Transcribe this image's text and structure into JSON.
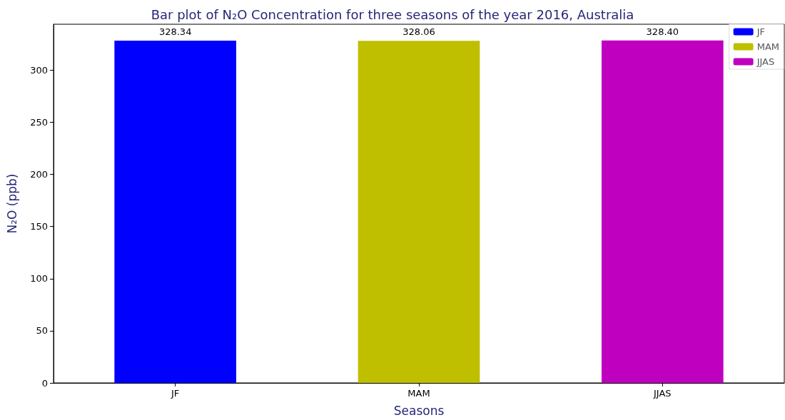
{
  "chart_data": {
    "type": "bar",
    "title": "Bar plot of N₂O Concentration for three seasons of the year 2016, Australia",
    "xlabel": "Seasons",
    "ylabel": "N₂O (ppb)",
    "categories": [
      "JF",
      "MAM",
      "JJAS"
    ],
    "series": [
      {
        "name": "JF",
        "color": "#0000ff",
        "values": [
          328.34,
          null,
          null
        ],
        "value_labels": [
          "328.34",
          null,
          null
        ]
      },
      {
        "name": "MAM",
        "color": "#bfbf00",
        "values": [
          null,
          328.06,
          null
        ],
        "value_labels": [
          null,
          "328.06",
          null
        ]
      },
      {
        "name": "JJAS",
        "color": "#bf00bf",
        "values": [
          null,
          null,
          328.4
        ],
        "value_labels": [
          null,
          null,
          "328.40"
        ]
      }
    ],
    "stacked": true,
    "ylim": [
      0,
      344
    ],
    "yticks": [
      0,
      50,
      100,
      150,
      200,
      250,
      300
    ],
    "grid": false,
    "legend": "top right"
  }
}
